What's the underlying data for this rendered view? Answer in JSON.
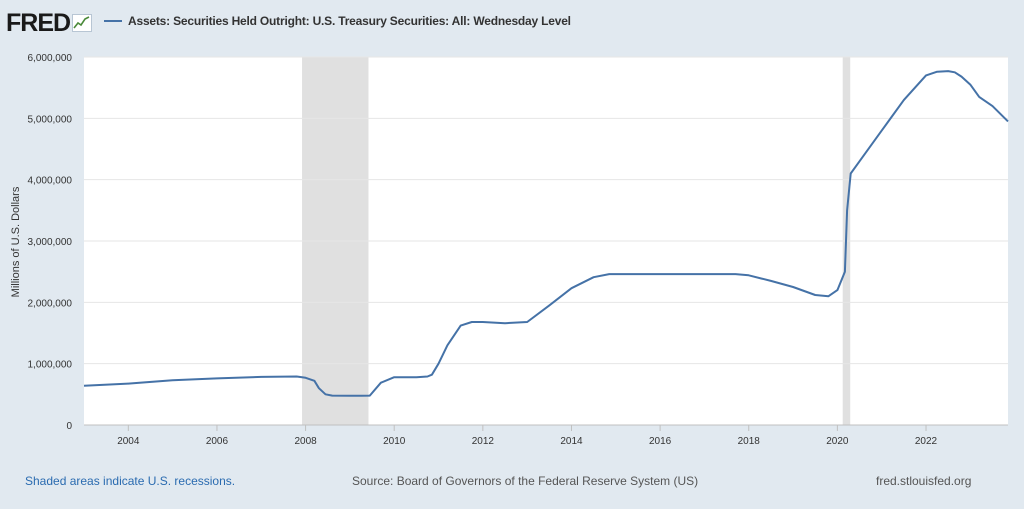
{
  "header": {
    "logo_text": "FRED",
    "series_title": "Assets: Securities Held Outright: U.S. Treasury Securities: All: Wednesday Level"
  },
  "footer": {
    "recession_note": "Shaded areas indicate U.S. recessions.",
    "source": "Source: Board of Governors of the Federal Reserve System (US)",
    "site": "fred.stlouisfed.org"
  },
  "colors": {
    "line": "#4572a7",
    "recession": "#e0e0e0",
    "plot_bg": "#ffffff",
    "page_bg": "#e1e9f0"
  },
  "chart_data": {
    "type": "line",
    "title": "Assets: Securities Held Outright: U.S. Treasury Securities: All: Wednesday Level",
    "xlabel": "",
    "ylabel": "Millions of U.S. Dollars",
    "ylim": [
      0,
      6000000
    ],
    "xlim": [
      2003.0,
      2023.85
    ],
    "y_ticks": [
      0,
      1000000,
      2000000,
      3000000,
      4000000,
      5000000,
      6000000
    ],
    "y_tick_labels": [
      "0",
      "1,000,000",
      "2,000,000",
      "3,000,000",
      "4,000,000",
      "5,000,000",
      "6,000,000"
    ],
    "x_ticks": [
      2004,
      2006,
      2008,
      2010,
      2012,
      2014,
      2016,
      2018,
      2020,
      2022
    ],
    "x_tick_labels": [
      "2004",
      "2006",
      "2008",
      "2010",
      "2012",
      "2014",
      "2016",
      "2018",
      "2020",
      "2022"
    ],
    "grid": true,
    "legend": "top-left",
    "recessions": [
      {
        "start": 2007.92,
        "end": 2009.42
      },
      {
        "start": 2020.12,
        "end": 2020.29
      }
    ],
    "series": [
      {
        "x": [
          2003.0,
          2004.0,
          2005.0,
          2006.0,
          2007.0,
          2007.8,
          2008.0,
          2008.2,
          2008.3,
          2008.45,
          2008.6,
          2009.0,
          2009.25,
          2009.45,
          2009.7,
          2010.0,
          2010.5,
          2010.75,
          2010.85,
          2011.0,
          2011.2,
          2011.5,
          2011.75,
          2012.0,
          2012.25,
          2012.5,
          2013.0,
          2013.5,
          2014.0,
          2014.5,
          2014.85,
          2015.0,
          2016.0,
          2017.0,
          2017.7,
          2018.0,
          2018.5,
          2019.0,
          2019.5,
          2019.8,
          2020.0,
          2020.17,
          2020.22,
          2020.3,
          2020.5,
          2021.0,
          2021.5,
          2022.0,
          2022.25,
          2022.5,
          2022.65,
          2022.8,
          2023.0,
          2023.2,
          2023.5,
          2023.85
        ],
        "values": [
          640000,
          675000,
          730000,
          760000,
          785000,
          790000,
          770000,
          720000,
          600000,
          500000,
          480000,
          478000,
          478000,
          480000,
          690000,
          780000,
          780000,
          790000,
          820000,
          1000000,
          1300000,
          1620000,
          1680000,
          1680000,
          1670000,
          1660000,
          1680000,
          1950000,
          2230000,
          2410000,
          2460000,
          2460000,
          2460000,
          2460000,
          2460000,
          2440000,
          2350000,
          2250000,
          2120000,
          2100000,
          2200000,
          2500000,
          3500000,
          4100000,
          4300000,
          4800000,
          5300000,
          5700000,
          5760000,
          5770000,
          5750000,
          5680000,
          5550000,
          5350000,
          5200000,
          4950000
        ]
      }
    ]
  }
}
